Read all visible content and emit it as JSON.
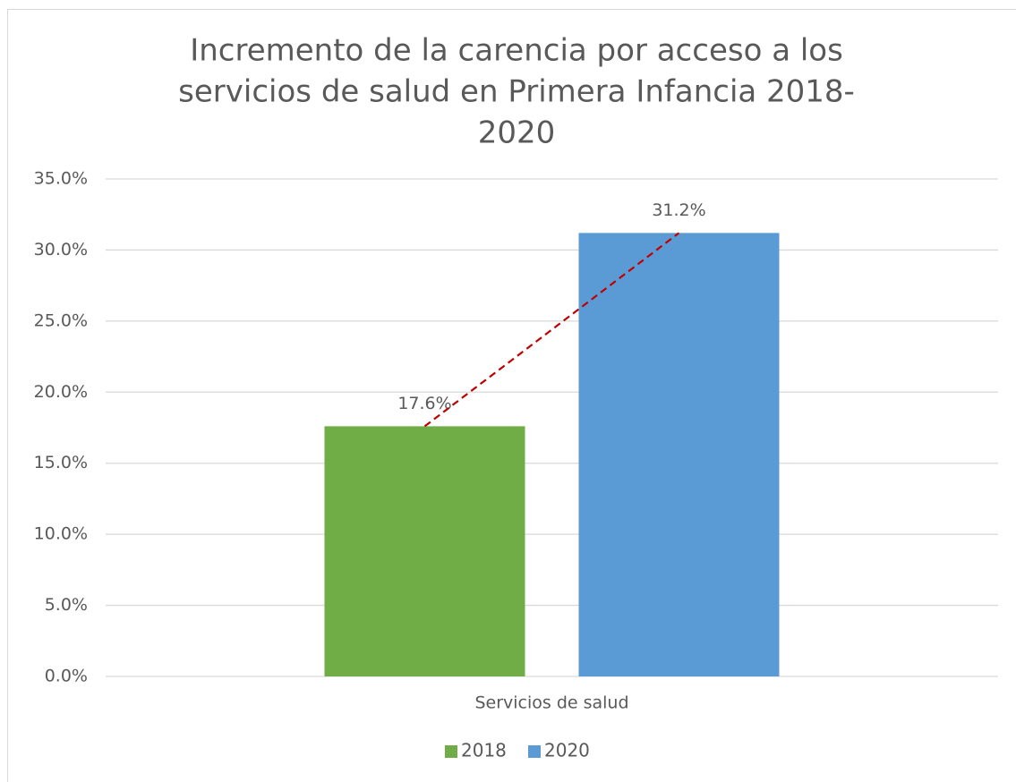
{
  "chart_data": {
    "type": "bar",
    "title": [
      "Incremento de la carencia por acceso a los",
      "servicios de salud en Primera Infancia 2018-",
      "2020"
    ],
    "categories": [
      "Servicios de salud"
    ],
    "series": [
      {
        "name": "2018",
        "color": "#70ad47",
        "values": [
          17.6
        ],
        "value_labels": [
          "17.6%"
        ]
      },
      {
        "name": "2020",
        "color": "#5b9bd5",
        "values": [
          31.2
        ],
        "value_labels": [
          "31.2%"
        ]
      }
    ],
    "ylim": [
      0,
      35
    ],
    "yticks": [
      {
        "value": 0,
        "label": "0.0%"
      },
      {
        "value": 5,
        "label": "5.0%"
      },
      {
        "value": 10,
        "label": "10.0%"
      },
      {
        "value": 15,
        "label": "15.0%"
      },
      {
        "value": 20,
        "label": "20.0%"
      },
      {
        "value": 25,
        "label": "25.0%"
      },
      {
        "value": 30,
        "label": "30.0%"
      },
      {
        "value": 35,
        "label": "35.0%"
      }
    ],
    "grid": true,
    "legend": "bottom",
    "trend_line": {
      "color": "#c00000",
      "dashed": true
    }
  }
}
